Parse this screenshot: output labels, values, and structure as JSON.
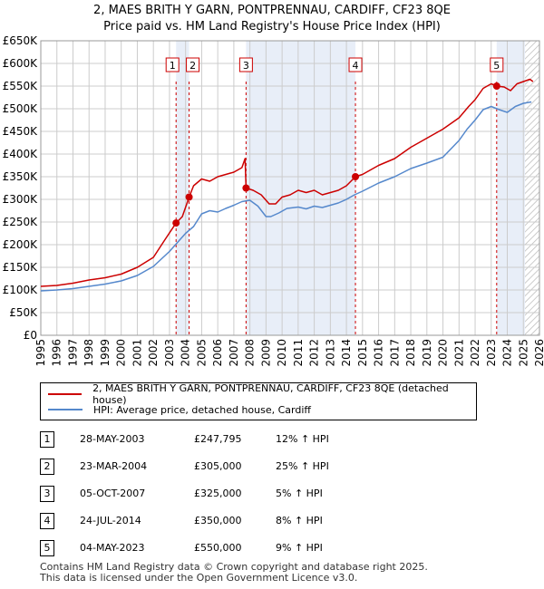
{
  "title": "2, MAES BRITH Y GARN, PONTPRENNAU, CARDIFF, CF23 8QE",
  "subtitle": "Price paid vs. HM Land Registry's House Price Index (HPI)",
  "colors": {
    "property": "#cc0000",
    "hpi": "#5588cc",
    "shade": "#e8eef8",
    "grid": "#cccccc"
  },
  "chart_data": {
    "type": "line",
    "title": "2, MAES BRITH Y GARN, PONTPRENNAU, CARDIFF, CF23 8QE",
    "subtitle": "Price paid vs. HM Land Registry's House Price Index (HPI)",
    "xlabel": "",
    "ylabel": "",
    "xlim": [
      1995,
      2026
    ],
    "ylim": [
      0,
      650000
    ],
    "y_ticks": [
      0,
      50000,
      100000,
      150000,
      200000,
      250000,
      300000,
      350000,
      400000,
      450000,
      500000,
      550000,
      600000,
      650000
    ],
    "y_tick_labels": [
      "£0",
      "£50K",
      "£100K",
      "£150K",
      "£200K",
      "£250K",
      "£300K",
      "£350K",
      "£400K",
      "£450K",
      "£500K",
      "£550K",
      "£600K",
      "£650K"
    ],
    "x_ticks": [
      1995,
      1996,
      1997,
      1998,
      1999,
      2000,
      2001,
      2002,
      2003,
      2004,
      2005,
      2006,
      2007,
      2008,
      2009,
      2010,
      2011,
      2012,
      2013,
      2014,
      2015,
      2016,
      2017,
      2018,
      2019,
      2020,
      2021,
      2022,
      2023,
      2024,
      2025,
      2026
    ],
    "grid": true,
    "shaded_spans": [
      [
        2003.41,
        2004.22
      ],
      [
        2007.76,
        2014.56
      ],
      [
        2023.34,
        2025.1
      ]
    ],
    "hatched_span": [
      2025.1,
      2026
    ],
    "series": [
      {
        "name": "2, MAES BRITH Y GARN, PONTPRENNAU, CARDIFF, CF23 8QE (detached house)",
        "color": "#cc0000",
        "points": [
          [
            1995.0,
            108000
          ],
          [
            1996.0,
            110000
          ],
          [
            1997.0,
            115000
          ],
          [
            1998.0,
            122000
          ],
          [
            1999.0,
            127000
          ],
          [
            2000.0,
            135000
          ],
          [
            2001.0,
            150000
          ],
          [
            2002.0,
            172000
          ],
          [
            2002.7,
            210000
          ],
          [
            2003.41,
            247795
          ],
          [
            2003.8,
            262000
          ],
          [
            2004.22,
            305000
          ],
          [
            2004.5,
            330000
          ],
          [
            2005.0,
            345000
          ],
          [
            2005.5,
            340000
          ],
          [
            2006.0,
            350000
          ],
          [
            2006.5,
            355000
          ],
          [
            2007.0,
            360000
          ],
          [
            2007.5,
            370000
          ],
          [
            2007.7,
            390000
          ],
          [
            2007.76,
            325000
          ],
          [
            2008.2,
            320000
          ],
          [
            2008.7,
            310000
          ],
          [
            2009.2,
            290000
          ],
          [
            2009.6,
            290000
          ],
          [
            2010.0,
            305000
          ],
          [
            2010.5,
            310000
          ],
          [
            2011.0,
            320000
          ],
          [
            2011.5,
            315000
          ],
          [
            2012.0,
            320000
          ],
          [
            2012.5,
            310000
          ],
          [
            2013.0,
            315000
          ],
          [
            2013.5,
            320000
          ],
          [
            2014.0,
            330000
          ],
          [
            2014.56,
            350000
          ],
          [
            2015.0,
            355000
          ],
          [
            2016.0,
            375000
          ],
          [
            2017.0,
            390000
          ],
          [
            2018.0,
            415000
          ],
          [
            2019.0,
            435000
          ],
          [
            2020.0,
            455000
          ],
          [
            2021.0,
            480000
          ],
          [
            2021.6,
            505000
          ],
          [
            2022.0,
            520000
          ],
          [
            2022.5,
            545000
          ],
          [
            2023.0,
            555000
          ],
          [
            2023.34,
            550000
          ],
          [
            2023.8,
            548000
          ],
          [
            2024.2,
            540000
          ],
          [
            2024.6,
            555000
          ],
          [
            2025.0,
            560000
          ],
          [
            2025.4,
            565000
          ],
          [
            2025.6,
            560000
          ]
        ]
      },
      {
        "name": "HPI: Average price, detached house, Cardiff",
        "color": "#5588cc",
        "points": [
          [
            1995.0,
            98000
          ],
          [
            1996.0,
            100000
          ],
          [
            1997.0,
            103000
          ],
          [
            1998.0,
            108000
          ],
          [
            1999.0,
            113000
          ],
          [
            2000.0,
            120000
          ],
          [
            2001.0,
            132000
          ],
          [
            2002.0,
            152000
          ],
          [
            2003.0,
            185000
          ],
          [
            2003.5,
            205000
          ],
          [
            2004.0,
            225000
          ],
          [
            2004.5,
            240000
          ],
          [
            2005.0,
            268000
          ],
          [
            2005.5,
            275000
          ],
          [
            2006.0,
            272000
          ],
          [
            2006.5,
            280000
          ],
          [
            2007.0,
            287000
          ],
          [
            2007.5,
            295000
          ],
          [
            2008.0,
            298000
          ],
          [
            2008.5,
            285000
          ],
          [
            2009.0,
            262000
          ],
          [
            2009.3,
            262000
          ],
          [
            2009.8,
            270000
          ],
          [
            2010.3,
            280000
          ],
          [
            2011.0,
            283000
          ],
          [
            2011.5,
            279000
          ],
          [
            2012.0,
            285000
          ],
          [
            2012.5,
            282000
          ],
          [
            2013.0,
            287000
          ],
          [
            2013.5,
            292000
          ],
          [
            2014.0,
            300000
          ],
          [
            2014.5,
            310000
          ],
          [
            2015.0,
            318000
          ],
          [
            2016.0,
            336000
          ],
          [
            2017.0,
            350000
          ],
          [
            2018.0,
            368000
          ],
          [
            2019.0,
            380000
          ],
          [
            2020.0,
            393000
          ],
          [
            2021.0,
            430000
          ],
          [
            2021.5,
            455000
          ],
          [
            2022.0,
            475000
          ],
          [
            2022.5,
            498000
          ],
          [
            2023.0,
            505000
          ],
          [
            2023.5,
            498000
          ],
          [
            2024.0,
            492000
          ],
          [
            2024.5,
            505000
          ],
          [
            2025.0,
            512000
          ],
          [
            2025.5,
            515000
          ]
        ]
      }
    ],
    "sales": [
      {
        "label": "1",
        "x": 2003.41,
        "y": 247795
      },
      {
        "label": "2",
        "x": 2004.22,
        "y": 305000
      },
      {
        "label": "3",
        "x": 2007.76,
        "y": 325000
      },
      {
        "label": "4",
        "x": 2014.56,
        "y": 350000
      },
      {
        "label": "5",
        "x": 2023.34,
        "y": 550000
      }
    ]
  },
  "legend": {
    "property_label": "2, MAES BRITH Y GARN, PONTPRENNAU, CARDIFF, CF23 8QE (detached house)",
    "hpi_label": "HPI: Average price, detached house, Cardiff"
  },
  "transactions": [
    {
      "num": "1",
      "date": "28-MAY-2003",
      "price": "£247,795",
      "hpi": "12% ↑ HPI"
    },
    {
      "num": "2",
      "date": "23-MAR-2004",
      "price": "£305,000",
      "hpi": "25% ↑ HPI"
    },
    {
      "num": "3",
      "date": "05-OCT-2007",
      "price": "£325,000",
      "hpi": "5% ↑ HPI"
    },
    {
      "num": "4",
      "date": "24-JUL-2014",
      "price": "£350,000",
      "hpi": "8% ↑ HPI"
    },
    {
      "num": "5",
      "date": "04-MAY-2023",
      "price": "£550,000",
      "hpi": "9% ↑ HPI"
    }
  ],
  "footer": {
    "line1": "Contains HM Land Registry data © Crown copyright and database right 2025.",
    "line2": "This data is licensed under the Open Government Licence v3.0."
  }
}
